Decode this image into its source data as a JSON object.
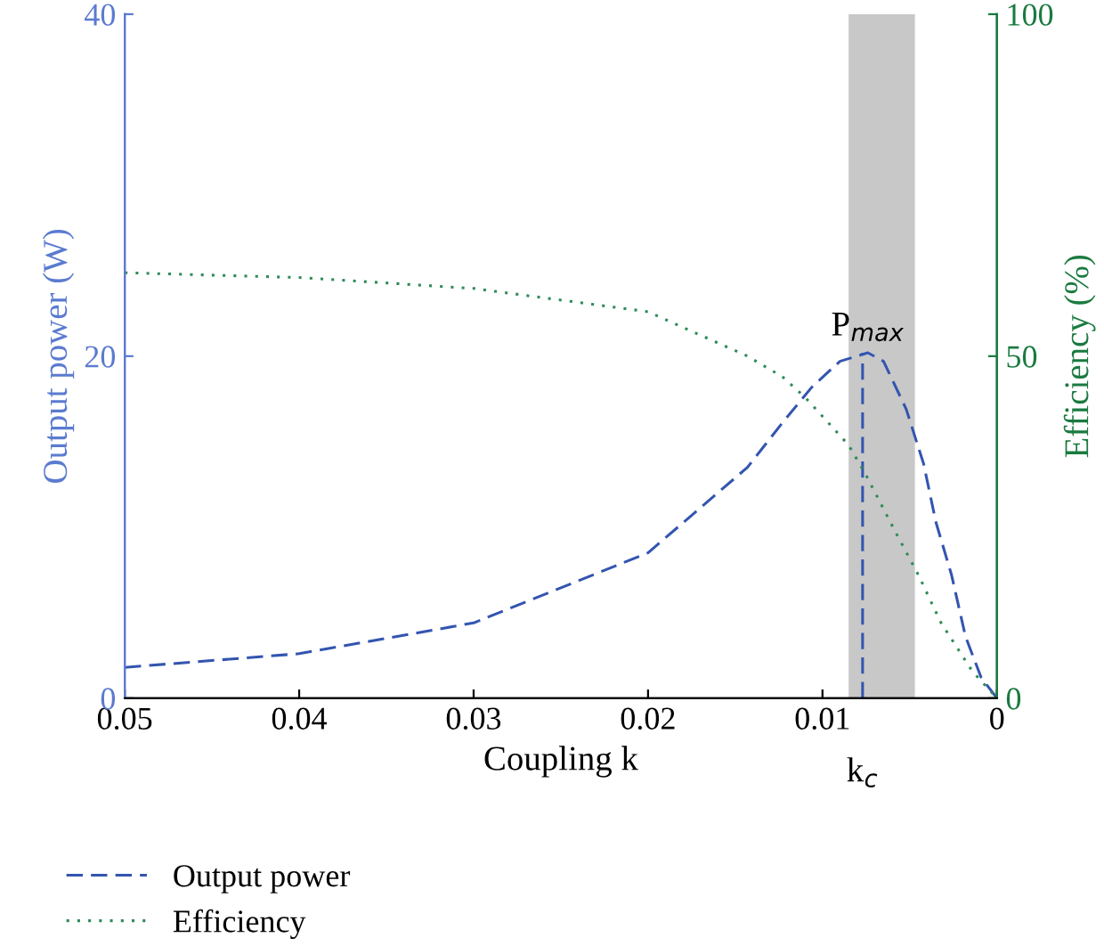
{
  "chart_data": {
    "type": "line",
    "xlabel": "Coupling k",
    "ylabel": "Output power (W)",
    "y2label": "Efficiency (%)",
    "xlim": [
      0.05,
      0
    ],
    "xticks": [
      0.05,
      0.04,
      0.03,
      0.02,
      0.01,
      0
    ],
    "ylim": [
      0,
      40
    ],
    "yticks": [
      0,
      20,
      40
    ],
    "y2lim": [
      0,
      100
    ],
    "y2ticks": [
      0,
      50,
      100
    ],
    "series": [
      {
        "name": "Output power",
        "color": "#3355b0",
        "line_style": "dashed",
        "x": [
          0.05,
          0.04,
          0.03,
          0.02,
          0.0143,
          0.0123,
          0.0106,
          0.009,
          0.0074,
          0.0065,
          0.0052,
          0.0042,
          0.0035,
          0.0026,
          0.0018,
          0.0009,
          0
        ],
        "values": [
          1.8,
          2.6,
          4.4,
          8.5,
          13.5,
          16.1,
          18.2,
          19.7,
          20.2,
          19.7,
          16.9,
          13.7,
          10.3,
          7.2,
          3.6,
          1.2,
          0
        ]
      },
      {
        "name": "Efficiency",
        "color": "#2e8b57",
        "line_style": "dotted",
        "axis": "y2",
        "x": [
          0.05,
          0.04,
          0.03,
          0.02,
          0.0143,
          0.0123,
          0.011,
          0.0085,
          0.0075,
          0.0059,
          0.0045,
          0.0032,
          0.0014,
          0
        ],
        "values": [
          62.2,
          61.5,
          59.9,
          56.5,
          50,
          47,
          44,
          37,
          32.6,
          24.7,
          18,
          11,
          3.9,
          0
        ]
      }
    ],
    "bands": [
      {
        "axis": "x",
        "from": 0.0085,
        "to": 0.0047,
        "color": "#c8c8c8"
      }
    ],
    "ref_lines": [
      {
        "axis": "x",
        "value": 0.0077,
        "color": "#3355b0",
        "line_style": "dashed"
      }
    ],
    "annotations": [
      {
        "text": "P$_{max}$",
        "x": 0.0074,
        "y": 20.2
      },
      {
        "text": "k$_{c}$",
        "x": 0.0077,
        "y": 0
      }
    ],
    "legend": "bottom left",
    "grid": false
  }
}
